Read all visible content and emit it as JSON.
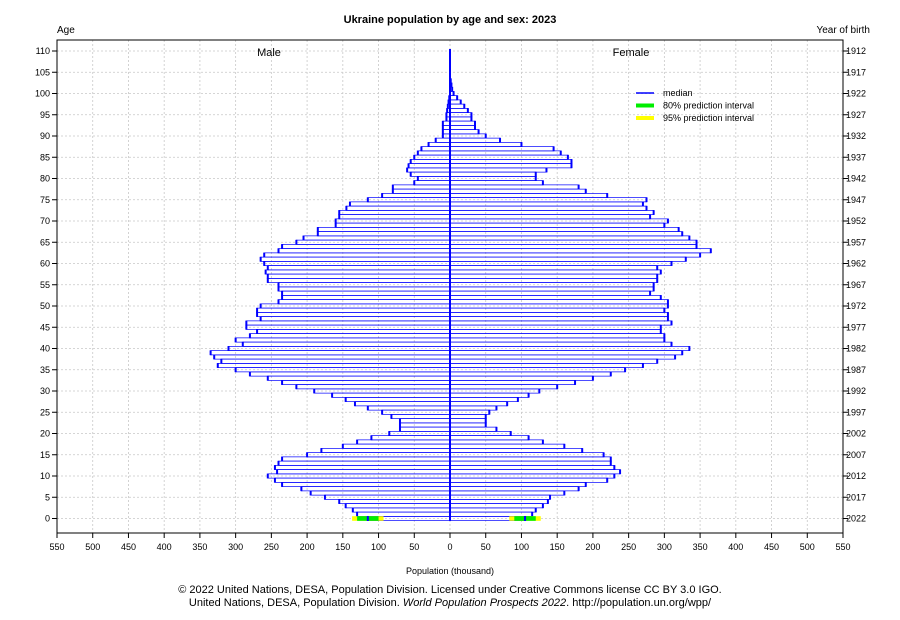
{
  "chart_data": {
    "type": "population-pyramid",
    "title": "Ukraine population by age and sex: 2023",
    "left_axis_title": "Age",
    "right_axis_title": "Year of birth",
    "xlabel": "Population (thousand)",
    "male_label": "Male",
    "female_label": "Female",
    "xlim": [
      -550,
      550
    ],
    "ylim": [
      0,
      110
    ],
    "x_ticks": [
      550,
      500,
      450,
      400,
      350,
      300,
      250,
      200,
      150,
      100,
      50,
      0,
      50,
      100,
      150,
      200,
      250,
      300,
      350,
      400,
      450,
      500,
      550
    ],
    "age_ticks": [
      0,
      5,
      10,
      15,
      20,
      25,
      30,
      35,
      40,
      45,
      50,
      55,
      60,
      65,
      70,
      75,
      80,
      85,
      90,
      95,
      100,
      105,
      110
    ],
    "birth_year_ticks": [
      "2022",
      "2017",
      "2012",
      "2007",
      "2002",
      "1997",
      "1992",
      "1987",
      "1982",
      "1977",
      "1972",
      "1967",
      "1962",
      "1957",
      "1952",
      "1947",
      "1942",
      "1937",
      "1932",
      "1927",
      "1922",
      "1917",
      "1912"
    ],
    "grid": true,
    "legend_position": "top-right",
    "legend": [
      {
        "label": "median",
        "color": "#0000ff"
      },
      {
        "label": "80% prediction interval",
        "color": "#00ee00"
      },
      {
        "label": "95% prediction interval",
        "color": "#ffff00"
      }
    ],
    "age_0_male_interval": {
      "median": 115,
      "pi80": [
        100,
        130
      ],
      "pi95": [
        93,
        137
      ]
    },
    "age_0_female_interval": {
      "median": 105,
      "pi80": [
        90,
        120
      ],
      "pi95": [
        83,
        127
      ]
    },
    "ages": [
      0,
      1,
      2,
      3,
      4,
      5,
      6,
      7,
      8,
      9,
      10,
      11,
      12,
      13,
      14,
      15,
      16,
      17,
      18,
      19,
      20,
      21,
      22,
      23,
      24,
      25,
      26,
      27,
      28,
      29,
      30,
      31,
      32,
      33,
      34,
      35,
      36,
      37,
      38,
      39,
      40,
      41,
      42,
      43,
      44,
      45,
      46,
      47,
      48,
      49,
      50,
      51,
      52,
      53,
      54,
      55,
      56,
      57,
      58,
      59,
      60,
      61,
      62,
      63,
      64,
      65,
      66,
      67,
      68,
      69,
      70,
      71,
      72,
      73,
      74,
      75,
      76,
      77,
      78,
      79,
      80,
      81,
      82,
      83,
      84,
      85,
      86,
      87,
      88,
      89,
      90,
      91,
      92,
      93,
      94,
      95,
      96,
      97,
      98,
      99,
      100,
      101,
      102,
      103,
      104,
      105,
      106,
      107,
      108,
      109,
      110
    ],
    "male": [
      115,
      130,
      136,
      146,
      155,
      175,
      195,
      208,
      235,
      245,
      255,
      242,
      245,
      240,
      235,
      200,
      180,
      150,
      130,
      110,
      85,
      70,
      70,
      70,
      82,
      95,
      115,
      133,
      146,
      165,
      190,
      215,
      235,
      255,
      280,
      300,
      325,
      320,
      330,
      335,
      310,
      290,
      300,
      280,
      270,
      285,
      285,
      265,
      270,
      270,
      265,
      240,
      235,
      235,
      240,
      240,
      255,
      255,
      258,
      255,
      260,
      265,
      260,
      240,
      235,
      215,
      205,
      185,
      185,
      160,
      160,
      155,
      155,
      145,
      140,
      115,
      95,
      80,
      80,
      50,
      45,
      55,
      60,
      58,
      55,
      50,
      45,
      40,
      30,
      20,
      10,
      10,
      10,
      10,
      5,
      5,
      4,
      3,
      2,
      1,
      0,
      0,
      0,
      0,
      0,
      0,
      0,
      0,
      0,
      0,
      0
    ],
    "female": [
      105,
      115,
      120,
      130,
      137,
      140,
      160,
      180,
      190,
      220,
      230,
      238,
      230,
      225,
      225,
      215,
      185,
      160,
      130,
      110,
      85,
      65,
      50,
      50,
      50,
      55,
      65,
      80,
      95,
      110,
      125,
      150,
      175,
      200,
      225,
      245,
      270,
      290,
      315,
      325,
      335,
      310,
      300,
      300,
      295,
      295,
      310,
      305,
      305,
      300,
      305,
      305,
      295,
      280,
      285,
      285,
      290,
      290,
      295,
      290,
      310,
      330,
      350,
      365,
      345,
      345,
      335,
      325,
      320,
      300,
      305,
      280,
      285,
      275,
      270,
      275,
      220,
      190,
      180,
      130,
      120,
      120,
      135,
      170,
      170,
      165,
      155,
      145,
      100,
      70,
      50,
      40,
      35,
      35,
      30,
      30,
      25,
      20,
      15,
      10,
      5,
      3,
      2,
      1,
      0,
      0,
      0,
      0,
      0,
      0,
      0
    ]
  },
  "credits": {
    "line1": "© 2022 United Nations, DESA, Population Division. Licensed under Creative Commons license CC BY 3.0 IGO.",
    "line2_prefix": "United Nations, DESA, Population Division. ",
    "line2_italic": "World Population Prospects 2022",
    "line2_suffix": ". http://population.un.org/wpp/"
  }
}
